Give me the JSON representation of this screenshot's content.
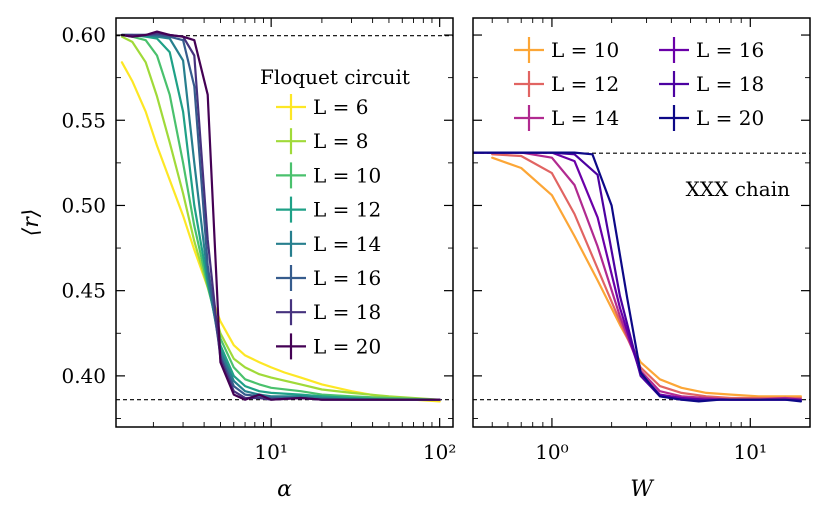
{
  "chart_data": [
    {
      "type": "line",
      "panel": "left",
      "ylabel": "⟨r⟩",
      "xlabel": "α",
      "xscale": "log",
      "xlim": [
        1.2,
        120
      ],
      "ylim": [
        0.37,
        0.61
      ],
      "yticks": [
        0.4,
        0.45,
        0.5,
        0.55,
        0.6
      ],
      "ytick_labels": [
        "0.40",
        "0.45",
        "0.50",
        "0.55",
        "0.60"
      ],
      "xticks": [
        10,
        100
      ],
      "xtick_labels": [
        "10¹",
        "10²"
      ],
      "reference_lines": [
        0.5996,
        0.386
      ],
      "legend_title": "Floquet circuit",
      "legend_position": "right",
      "series": [
        {
          "name": "L = 6",
          "color": "#fde725",
          "x": [
            1.3,
            1.5,
            1.8,
            2.1,
            2.5,
            3.0,
            3.5,
            4.2,
            5.0,
            6.0,
            7.0,
            8.5,
            10,
            12,
            15,
            20,
            30,
            50,
            100
          ],
          "y": [
            0.584,
            0.573,
            0.555,
            0.535,
            0.515,
            0.494,
            0.474,
            0.452,
            0.432,
            0.418,
            0.412,
            0.408,
            0.405,
            0.402,
            0.399,
            0.395,
            0.391,
            0.387,
            0.385
          ]
        },
        {
          "name": "L = 8",
          "color": "#a0da39",
          "x": [
            1.3,
            1.5,
            1.8,
            2.1,
            2.5,
            3.0,
            3.5,
            4.2,
            5.0,
            6.0,
            7.0,
            8.5,
            10,
            15,
            20,
            30,
            50,
            100
          ],
          "y": [
            0.599,
            0.596,
            0.584,
            0.564,
            0.537,
            0.507,
            0.479,
            0.452,
            0.425,
            0.41,
            0.405,
            0.401,
            0.399,
            0.395,
            0.392,
            0.39,
            0.388,
            0.386
          ]
        },
        {
          "name": "L = 10",
          "color": "#4ac16d",
          "x": [
            1.3,
            1.5,
            1.8,
            2.1,
            2.5,
            3.0,
            3.5,
            4.2,
            5.0,
            6.0,
            7.0,
            8.5,
            10,
            15,
            20,
            30,
            50,
            100
          ],
          "y": [
            0.6,
            0.599,
            0.597,
            0.588,
            0.565,
            0.525,
            0.488,
            0.453,
            0.422,
            0.405,
            0.398,
            0.395,
            0.393,
            0.391,
            0.389,
            0.388,
            0.387,
            0.386
          ]
        },
        {
          "name": "L = 12",
          "color": "#1fa187",
          "x": [
            1.3,
            1.5,
            1.8,
            2.1,
            2.5,
            3.0,
            3.5,
            4.2,
            5.0,
            6.0,
            7.0,
            8.5,
            10,
            15,
            20,
            30,
            50,
            100
          ],
          "y": [
            0.6,
            0.6,
            0.599,
            0.598,
            0.59,
            0.555,
            0.5,
            0.455,
            0.418,
            0.4,
            0.394,
            0.391,
            0.39,
            0.389,
            0.388,
            0.387,
            0.386,
            0.386
          ]
        },
        {
          "name": "L = 14",
          "color": "#277f8e",
          "x": [
            1.3,
            1.5,
            1.8,
            2.1,
            2.5,
            3.0,
            3.5,
            4.2,
            5.0,
            6.0,
            7.0,
            8.5,
            10,
            15,
            20,
            30,
            50,
            100
          ],
          "y": [
            0.6,
            0.6,
            0.6,
            0.599,
            0.598,
            0.585,
            0.525,
            0.458,
            0.415,
            0.397,
            0.391,
            0.389,
            0.388,
            0.388,
            0.387,
            0.386,
            0.386,
            0.386
          ]
        },
        {
          "name": "L = 16",
          "color": "#365c8d",
          "x": [
            1.3,
            1.5,
            1.8,
            2.1,
            2.5,
            3.0,
            3.5,
            4.2,
            5.0,
            6.0,
            7.0,
            8.5,
            10,
            15,
            20,
            30,
            50,
            100
          ],
          "y": [
            0.6,
            0.6,
            0.6,
            0.6,
            0.599,
            0.597,
            0.57,
            0.465,
            0.412,
            0.394,
            0.389,
            0.388,
            0.387,
            0.387,
            0.386,
            0.386,
            0.386,
            0.386
          ]
        },
        {
          "name": "L = 18",
          "color": "#46327e",
          "x": [
            1.3,
            1.5,
            1.8,
            2.1,
            2.5,
            3.0,
            3.5,
            4.2,
            5.0,
            6.0,
            7.0,
            8.5,
            10,
            15,
            20,
            30,
            50,
            100
          ],
          "y": [
            0.6,
            0.6,
            0.6,
            0.601,
            0.6,
            0.599,
            0.588,
            0.48,
            0.41,
            0.391,
            0.387,
            0.387,
            0.386,
            0.387,
            0.386,
            0.386,
            0.386,
            0.386
          ]
        },
        {
          "name": "L = 20",
          "color": "#440154",
          "x": [
            1.3,
            1.5,
            1.8,
            2.1,
            2.5,
            3.0,
            3.5,
            4.2,
            5.0,
            6.0,
            7.0,
            8.5,
            10,
            15,
            20,
            30,
            50,
            100
          ],
          "y": [
            0.6,
            0.599,
            0.6,
            0.602,
            0.6,
            0.599,
            0.597,
            0.565,
            0.408,
            0.389,
            0.386,
            0.389,
            0.386,
            0.387,
            0.386,
            0.386,
            0.386,
            0.386
          ]
        }
      ]
    },
    {
      "type": "line",
      "panel": "right",
      "xlabel": "W",
      "xscale": "log",
      "xlim": [
        0.4,
        20
      ],
      "ylim": [
        0.37,
        0.61
      ],
      "xticks": [
        1,
        10
      ],
      "xtick_labels": [
        "10⁰",
        "10¹"
      ],
      "reference_lines": [
        0.5307,
        0.386
      ],
      "annotation": "XXX chain",
      "legend_position": "top",
      "series": [
        {
          "name": "L = 10",
          "color": "#fca636",
          "x": [
            0.5,
            0.7,
            1.0,
            1.3,
            1.7,
            2.2,
            2.8,
            3.5,
            4.5,
            6,
            8,
            11,
            15,
            18
          ],
          "y": [
            0.528,
            0.522,
            0.506,
            0.482,
            0.456,
            0.43,
            0.408,
            0.398,
            0.393,
            0.39,
            0.389,
            0.388,
            0.388,
            0.388
          ]
        },
        {
          "name": "L = 12",
          "color": "#e16462",
          "x": [
            0.5,
            0.7,
            1.0,
            1.3,
            1.7,
            2.2,
            2.8,
            3.5,
            4.5,
            6,
            8,
            11,
            15,
            18
          ],
          "y": [
            0.53,
            0.529,
            0.519,
            0.495,
            0.463,
            0.432,
            0.405,
            0.394,
            0.39,
            0.388,
            0.387,
            0.387,
            0.387,
            0.387
          ]
        },
        {
          "name": "L = 14",
          "color": "#b12a90",
          "x": [
            0.5,
            0.7,
            1.0,
            1.3,
            1.7,
            2.2,
            2.8,
            3.5,
            4.5,
            6,
            8,
            11,
            15,
            18
          ],
          "y": [
            0.531,
            0.531,
            0.528,
            0.512,
            0.476,
            0.435,
            0.403,
            0.391,
            0.388,
            0.387,
            0.386,
            0.386,
            0.387,
            0.386
          ]
        },
        {
          "name": "L = 16",
          "color": "#6a00a8",
          "x": [
            0.4,
            0.6,
            0.8,
            1.0,
            1.3,
            1.7,
            2.2,
            2.8,
            3.5,
            4.5,
            6,
            8,
            11,
            15,
            18
          ],
          "y": [
            0.531,
            0.531,
            0.531,
            0.531,
            0.526,
            0.493,
            0.44,
            0.401,
            0.389,
            0.387,
            0.386,
            0.386,
            0.386,
            0.386,
            0.386
          ]
        },
        {
          "name": "L = 18",
          "color": "#4c02a1",
          "x": [
            0.4,
            0.6,
            0.8,
            1.0,
            1.3,
            1.7,
            2.2,
            2.8,
            3.5,
            4.5,
            6,
            8,
            11,
            15,
            18
          ],
          "y": [
            0.531,
            0.531,
            0.531,
            0.531,
            0.53,
            0.518,
            0.447,
            0.4,
            0.388,
            0.386,
            0.386,
            0.386,
            0.386,
            0.386,
            0.386
          ]
        },
        {
          "name": "L = 20",
          "color": "#0d0887",
          "x": [
            0.4,
            0.6,
            0.8,
            1.0,
            1.3,
            1.6,
            2.0,
            2.4,
            2.8,
            3.5,
            4.5,
            5.5,
            7,
            9,
            12,
            15,
            18
          ],
          "y": [
            0.531,
            0.531,
            0.531,
            0.531,
            0.531,
            0.53,
            0.5,
            0.445,
            0.402,
            0.388,
            0.386,
            0.385,
            0.386,
            0.386,
            0.386,
            0.386,
            0.385
          ]
        }
      ]
    }
  ]
}
